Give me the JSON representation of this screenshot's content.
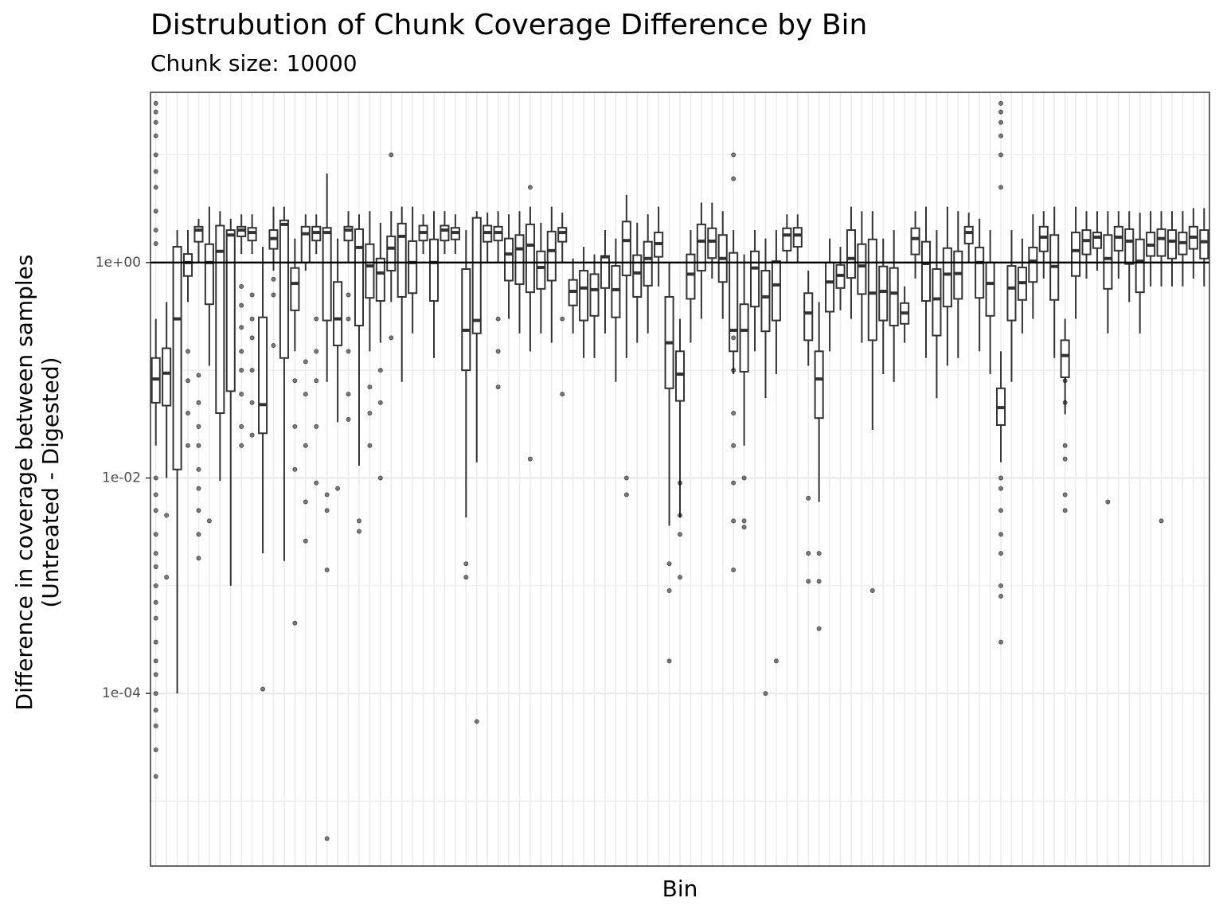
{
  "chart_data": {
    "type": "box",
    "title": "Distrubution of Chunk Coverage Difference by Bin",
    "subtitle": "Chunk size: 10000",
    "xlabel": "Bin",
    "ylabel": [
      "Difference in coverage between samples",
      "(Untreated - Digested)"
    ],
    "log_y": true,
    "ylim": [
      2.5e-06,
      38
    ],
    "yticks": [
      {
        "value": 0.0001,
        "label": "1e-04"
      },
      {
        "value": 0.01,
        "label": "1e-02"
      },
      {
        "value": 1,
        "label": "1e+00"
      }
    ],
    "minor_yticks": [
      1e-05,
      0.001,
      0.1,
      10
    ],
    "reference_line": 1,
    "grid": true,
    "color": "#333333",
    "categories": [
      null,
      null,
      null,
      null,
      null,
      null,
      null,
      null,
      null,
      null,
      null,
      null,
      null,
      null,
      null,
      null,
      null,
      null,
      null,
      null,
      null,
      null,
      null,
      null,
      null,
      null,
      null,
      null,
      null,
      null,
      null,
      null,
      null,
      null,
      null,
      null,
      null,
      null,
      null,
      null,
      null,
      null,
      null,
      null,
      null,
      null,
      null,
      null,
      null,
      null,
      null,
      null,
      null,
      null,
      null,
      null,
      null,
      null,
      null,
      null,
      null,
      null,
      null,
      null,
      null,
      null,
      null,
      null,
      null,
      null,
      null,
      null,
      null,
      null,
      null,
      null,
      null,
      null,
      null,
      null,
      null,
      null,
      null,
      null,
      null,
      null,
      null,
      null,
      null,
      null,
      null,
      null,
      null,
      null,
      null,
      null,
      null,
      null,
      null
    ],
    "whisker_high": [
      0.3,
      0.43,
      2.0,
      2.0,
      2.55,
      3.3,
      3.0,
      2.55,
      2.8,
      2.8,
      1.4,
      3.3,
      3.3,
      1.67,
      2.8,
      2.8,
      6.7,
      1.67,
      3.0,
      2.8,
      3.0,
      2.34,
      3.0,
      3.3,
      3.3,
      2.8,
      3.0,
      3.0,
      2.8,
      2.0,
      3.0,
      2.9,
      3.0,
      2.8,
      3.0,
      3.3,
      2.34,
      3.3,
      2.9,
      1.09,
      1.4,
      1.19,
      2.0,
      1.67,
      4.25,
      2.34,
      2.8,
      3.3,
      1.0,
      0.3,
      2.0,
      3.6,
      3.6,
      3.0,
      2.0,
      1.19,
      2.0,
      1.67,
      2.0,
      2.8,
      2.8,
      0.84,
      0.43,
      1.67,
      1.4,
      3.3,
      3.0,
      3.0,
      1.67,
      2.0,
      0.6,
      3.0,
      3.3,
      2.0,
      3.3,
      3.0,
      2.9,
      2.55,
      2.0,
      0.15,
      2.0,
      1.67,
      2.8,
      3.0,
      3.3,
      0.3,
      3.3,
      3.0,
      3.0,
      3.0,
      3.0,
      3.0,
      2.9,
      3.0,
      3.0,
      3.0,
      3.0,
      3.2,
      3.2
    ],
    "q3": [
      0.13,
      0.16,
      1.4,
      1.2,
      2.15,
      1.48,
      2.2,
      2.0,
      2.15,
      2.1,
      0.31,
      2.0,
      2.46,
      0.89,
      2.15,
      2.15,
      2.1,
      0.66,
      2.15,
      2.04,
      1.48,
      1.09,
      1.75,
      2.3,
      1.58,
      2.2,
      1.64,
      2.2,
      2.1,
      0.87,
      2.6,
      2.2,
      2.15,
      1.67,
      1.8,
      2.26,
      1.27,
      1.94,
      2.1,
      0.69,
      0.84,
      0.78,
      1.15,
      0.93,
      2.4,
      1.17,
      1.56,
      1.9,
      0.48,
      0.15,
      1.19,
      2.26,
      2.08,
      1.8,
      1.23,
      0.41,
      1.27,
      0.84,
      1.03,
      2.08,
      2.1,
      0.52,
      0.15,
      1.0,
      0.95,
      2.0,
      1.48,
      1.64,
      0.92,
      0.89,
      0.42,
      2.08,
      1.56,
      0.87,
      1.36,
      1.27,
      2.15,
      1.38,
      1.0,
      0.068,
      0.93,
      0.9,
      1.38,
      2.15,
      1.8,
      0.19,
      1.9,
      2.0,
      1.9,
      1.8,
      2.15,
      2.04,
      1.64,
      1.9,
      2.04,
      2.0,
      1.9,
      2.15,
      2.0
    ],
    "median": [
      0.083,
      0.094,
      0.3,
      1.0,
      2.0,
      1.0,
      1.27,
      1.8,
      2.0,
      1.9,
      0.048,
      1.67,
      2.26,
      0.64,
      1.85,
      1.9,
      1.9,
      0.3,
      2.0,
      1.38,
      0.93,
      0.8,
      1.36,
      1.75,
      1.0,
      1.9,
      1.0,
      2.0,
      1.9,
      0.235,
      0.29,
      1.9,
      1.9,
      1.2,
      1.34,
      1.45,
      0.9,
      1.29,
      1.9,
      0.54,
      0.58,
      0.56,
      1.13,
      0.56,
      1.6,
      0.8,
      1.09,
      1.5,
      0.18,
      0.092,
      0.78,
      1.58,
      1.58,
      1.09,
      0.235,
      0.235,
      0.89,
      0.48,
      0.62,
      1.8,
      1.8,
      0.34,
      0.083,
      0.66,
      0.76,
      1.09,
      0.93,
      0.52,
      0.54,
      0.52,
      0.34,
      1.67,
      0.98,
      0.46,
      0.78,
      0.79,
      1.9,
      1.0,
      0.64,
      0.045,
      0.58,
      0.65,
      1.03,
      1.72,
      0.92,
      0.137,
      1.29,
      1.6,
      1.72,
      1.09,
      1.72,
      1.58,
      1.03,
      1.45,
      1.67,
      1.58,
      1.53,
      1.72,
      1.56
    ],
    "q1": [
      0.05,
      0.047,
      0.012,
      0.75,
      1.56,
      0.41,
      0.04,
      0.064,
      1.75,
      1.6,
      0.026,
      1.34,
      0.13,
      0.36,
      1.0,
      1.6,
      0.29,
      0.17,
      1.6,
      0.26,
      0.47,
      0.44,
      0.84,
      0.48,
      0.52,
      1.6,
      0.44,
      1.6,
      1.64,
      0.1,
      0.22,
      1.56,
      1.6,
      0.68,
      0.63,
      0.53,
      0.57,
      0.68,
      1.56,
      0.4,
      0.29,
      0.32,
      0.58,
      0.31,
      0.76,
      0.48,
      0.61,
      1.13,
      0.068,
      0.052,
      0.46,
      0.84,
      1.1,
      0.66,
      0.15,
      0.097,
      0.39,
      0.23,
      0.29,
      1.29,
      1.4,
      0.19,
      0.036,
      0.35,
      0.58,
      0.72,
      0.51,
      0.19,
      0.29,
      0.26,
      0.27,
      1.19,
      0.44,
      0.21,
      0.39,
      0.46,
      1.5,
      0.47,
      0.32,
      0.031,
      0.29,
      0.45,
      0.66,
      1.27,
      0.45,
      0.086,
      0.75,
      1.19,
      1.36,
      0.57,
      1.29,
      0.97,
      0.53,
      1.15,
      1.15,
      1.09,
      1.19,
      1.34,
      1.09
    ],
    "whisker_low": [
      0.02,
      0.01,
      0.0001,
      0.43,
      1.0,
      0.11,
      0.0094,
      0.001,
      1.2,
      1.2,
      0.002,
      0.84,
      0.0017,
      0.15,
      0.84,
      1.2,
      0.078,
      0.033,
      1.0,
      0.013,
      0.15,
      0.18,
      0.43,
      0.078,
      0.22,
      1.2,
      0.13,
      1.2,
      1.2,
      0.0043,
      0.014,
      1.0,
      1.0,
      0.3,
      0.22,
      0.15,
      0.22,
      0.18,
      1.0,
      0.22,
      0.13,
      0.13,
      0.22,
      0.078,
      0.13,
      0.18,
      0.22,
      0.6,
      0.0036,
      0.0043,
      0.18,
      0.3,
      0.71,
      0.3,
      0.092,
      0.02,
      0.15,
      0.055,
      0.092,
      1.0,
      1.0,
      0.11,
      0.006,
      0.15,
      0.36,
      0.3,
      0.18,
      0.028,
      0.092,
      0.078,
      0.18,
      0.71,
      0.13,
      0.055,
      0.11,
      0.13,
      1.0,
      0.15,
      0.092,
      0.014,
      0.078,
      0.22,
      0.3,
      0.71,
      0.13,
      0.039,
      0.3,
      0.71,
      0.84,
      0.22,
      0.71,
      0.43,
      0.22,
      0.6,
      0.6,
      0.6,
      0.6,
      0.71,
      0.6
    ],
    "outliers": [
      [
        30,
        25,
        20,
        15,
        10,
        7,
        5,
        3,
        2,
        1.5,
        0.01,
        0.007,
        0.005,
        0.003,
        0.002,
        0.0015,
        0.001,
        0.0007,
        0.0005,
        0.0003,
        0.0002,
        0.00015,
        0.0001,
        7e-05,
        5e-05,
        3e-05,
        1.7e-05
      ],
      [
        0.0045,
        0.0012
      ],
      [],
      [
        0.15,
        0.08,
        0.04,
        0.02
      ],
      [
        0.09,
        0.05,
        0.03,
        0.02,
        0.012,
        0.008,
        0.005,
        0.003,
        0.0018
      ],
      [
        0.004
      ],
      [],
      [],
      [
        0.6,
        0.4,
        0.25,
        0.15,
        0.1,
        0.06,
        0.03,
        0.02
      ],
      [
        0.5,
        0.3,
        0.2,
        0.1,
        0.05,
        0.025
      ],
      [
        0.00011
      ],
      [
        0.7,
        0.5,
        0.17
      ],
      [],
      [
        0.08,
        0.03,
        0.012,
        0.00045
      ],
      [
        0.12,
        0.06,
        0.02,
        0.006,
        0.0026
      ],
      [
        0.3,
        0.15,
        0.08,
        0.03,
        0.009
      ],
      [
        0.007,
        0.005,
        0.0014,
        4.5e-06
      ],
      [
        0.008
      ],
      [
        0.5,
        0.3,
        0.15,
        0.06,
        0.035
      ],
      [
        0.004,
        0.0032
      ],
      [
        0.07,
        0.04,
        0.02
      ],
      [
        0.1,
        0.05,
        0.01
      ],
      [
        10,
        0.2
      ],
      [],
      [],
      [],
      [],
      [],
      [],
      [
        0.0016,
        0.0012
      ],
      [
        5.5e-05
      ],
      [],
      [
        0.3,
        0.15,
        0.07
      ],
      [],
      [],
      [
        5,
        0.015
      ],
      [],
      [],
      [
        0.3,
        0.06
      ],
      [],
      [],
      [],
      [],
      [],
      [
        0.01,
        0.007
      ],
      [],
      [],
      [],
      [
        0.0016,
        0.0009,
        0.0002
      ],
      [
        0.009,
        0.0045,
        0.003,
        0.0012
      ],
      [],
      [],
      [],
      [],
      [
        10,
        6,
        0.2,
        0.1,
        0.04,
        0.02,
        0.009,
        0.004,
        0.0014
      ],
      [
        0.01,
        0.004,
        0.0035
      ],
      [],
      [
        0.0001
      ],
      [
        0.0002
      ],
      [],
      [],
      [
        0.0065,
        0.002,
        0.0011
      ],
      [
        0.002,
        0.0011,
        0.0004
      ],
      [],
      [],
      [],
      [],
      [
        0.0009
      ],
      [],
      [],
      [],
      [],
      [],
      [],
      [],
      [],
      [],
      [],
      [],
      [
        30,
        25,
        20,
        15,
        10,
        5,
        0.01,
        0.008,
        0.005,
        0.003,
        0.002,
        0.001,
        0.0008,
        0.0003
      ],
      [],
      [],
      [],
      [],
      [],
      [
        0.08,
        0.05,
        0.02,
        0.015,
        0.007,
        0.005
      ],
      [],
      [],
      [],
      [
        0.006
      ],
      [],
      [],
      [],
      [],
      [
        0.004
      ],
      [],
      [],
      [],
      []
    ]
  }
}
